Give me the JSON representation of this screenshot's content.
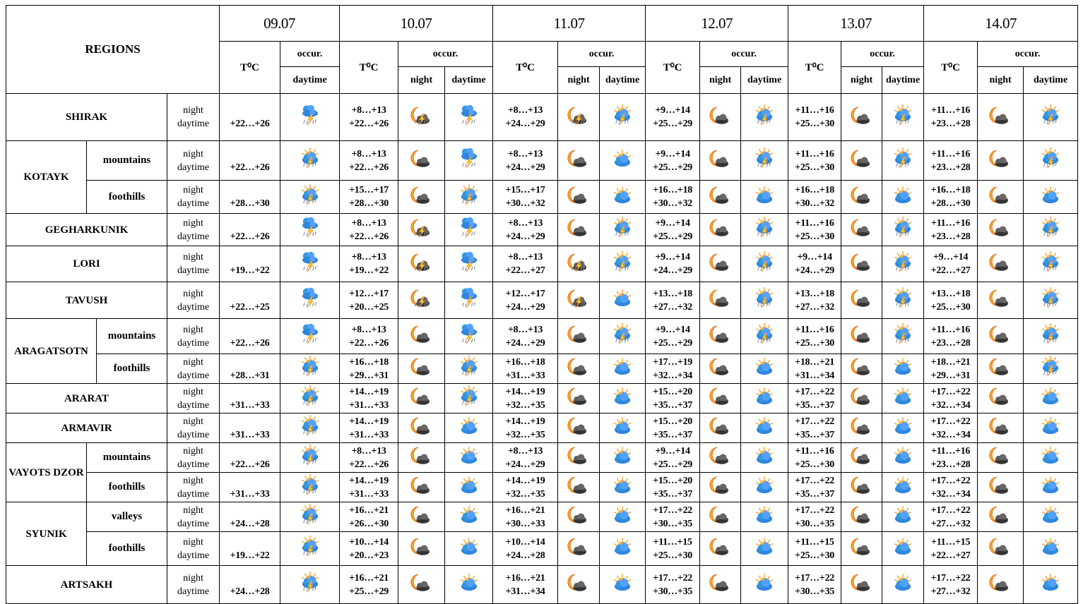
{
  "header": {
    "regions_label": "REGIONS",
    "temp_label": "T⁰C",
    "occur_label": "occur.",
    "night_label": "night",
    "daytime_label": "daytime"
  },
  "dates": [
    "09.07",
    "10.07",
    "11.07",
    "12.07",
    "13.07",
    "14.07"
  ],
  "row_labels": {
    "night": "night",
    "daytime": "daytime"
  },
  "icon_legend": {
    "storm": "storm-cloud-rain-lightning-icon",
    "sun-storm": "sun-cloud-rain-lightning-icon",
    "sun-cloud": "sun-behind-cloud-icon",
    "moon-cloud": "moon-cloud-icon",
    "moon-storm": "moon-cloud-lightning-icon"
  },
  "regions": [
    {
      "name": "SHIRAK",
      "subregions": [
        {
          "name": null,
          "first_day": {
            "day_temp": "+22…+26",
            "day_icon": "storm"
          },
          "days": [
            {
              "night_temp": "+8…+13",
              "day_temp": "+22…+26",
              "night_icon": "moon-storm",
              "day_icon": "storm"
            },
            {
              "night_temp": "+8…+13",
              "day_temp": "+24…+29",
              "night_icon": "moon-storm",
              "day_icon": "sun-storm"
            },
            {
              "night_temp": "+9…+14",
              "day_temp": "+25…+29",
              "night_icon": "moon-cloud",
              "day_icon": "sun-storm"
            },
            {
              "night_temp": "+11…+16",
              "day_temp": "+25…+30",
              "night_icon": "moon-cloud",
              "day_icon": "sun-storm"
            },
            {
              "night_temp": "+11…+16",
              "day_temp": "+23…+28",
              "night_icon": "moon-cloud",
              "day_icon": "sun-storm"
            }
          ]
        }
      ]
    },
    {
      "name": "KOTAYK",
      "subregions": [
        {
          "name": "mountains",
          "first_day": {
            "day_temp": "+22…+26",
            "day_icon": "sun-storm"
          },
          "days": [
            {
              "night_temp": "+8…+13",
              "day_temp": "+22…+26",
              "night_icon": "moon-cloud",
              "day_icon": "storm"
            },
            {
              "night_temp": "+8…+13",
              "day_temp": "+24…+29",
              "night_icon": "moon-cloud",
              "day_icon": "sun-cloud"
            },
            {
              "night_temp": "+9…+14",
              "day_temp": "+25…+29",
              "night_icon": "moon-cloud",
              "day_icon": "sun-storm"
            },
            {
              "night_temp": "+11…+16",
              "day_temp": "+25…+30",
              "night_icon": "moon-cloud",
              "day_icon": "sun-storm"
            },
            {
              "night_temp": "+11…+16",
              "day_temp": "+23…+28",
              "night_icon": "moon-cloud",
              "day_icon": "sun-storm"
            }
          ]
        },
        {
          "name": "foothills",
          "first_day": {
            "day_temp": "+28…+30",
            "day_icon": "sun-storm"
          },
          "days": [
            {
              "night_temp": "+15…+17",
              "day_temp": "+28…+30",
              "night_icon": "moon-cloud",
              "day_icon": "sun-storm"
            },
            {
              "night_temp": "+15…+17",
              "day_temp": "+30…+32",
              "night_icon": "moon-cloud",
              "day_icon": "sun-cloud"
            },
            {
              "night_temp": "+16…+18",
              "day_temp": "+30…+32",
              "night_icon": "moon-cloud",
              "day_icon": "sun-cloud"
            },
            {
              "night_temp": "+16…+18",
              "day_temp": "+30…+32",
              "night_icon": "moon-cloud",
              "day_icon": "sun-cloud"
            },
            {
              "night_temp": "+16…+18",
              "day_temp": "+28…+30",
              "night_icon": "moon-cloud",
              "day_icon": "sun-cloud"
            }
          ]
        }
      ]
    },
    {
      "name": "GEGHARKUNIK",
      "subregions": [
        {
          "name": null,
          "first_day": {
            "day_temp": "+22…+26",
            "day_icon": "storm"
          },
          "days": [
            {
              "night_temp": "+8…+13",
              "day_temp": "+22…+26",
              "night_icon": "moon-storm",
              "day_icon": "storm"
            },
            {
              "night_temp": "+8…+13",
              "day_temp": "+24…+29",
              "night_icon": "moon-cloud",
              "day_icon": "sun-storm"
            },
            {
              "night_temp": "+9…+14",
              "day_temp": "+25…+29",
              "night_icon": "moon-cloud",
              "day_icon": "sun-storm"
            },
            {
              "night_temp": "+11…+16",
              "day_temp": "+25…+30",
              "night_icon": "moon-cloud",
              "day_icon": "sun-storm"
            },
            {
              "night_temp": "+11…+16",
              "day_temp": "+23…+28",
              "night_icon": "moon-cloud",
              "day_icon": "sun-storm"
            }
          ]
        }
      ]
    },
    {
      "name": "LORI",
      "subregions": [
        {
          "name": null,
          "first_day": {
            "day_temp": "+19…+22",
            "day_icon": "storm"
          },
          "days": [
            {
              "night_temp": "+8…+13",
              "day_temp": "+19…+22",
              "night_icon": "moon-storm",
              "day_icon": "storm"
            },
            {
              "night_temp": "+8…+13",
              "day_temp": "+22…+27",
              "night_icon": "moon-storm",
              "day_icon": "sun-storm"
            },
            {
              "night_temp": "+9…+14",
              "day_temp": "+24…+29",
              "night_icon": "moon-cloud",
              "day_icon": "sun-storm"
            },
            {
              "night_temp": "+9…+14",
              "day_temp": "+24…+29",
              "night_icon": "moon-cloud",
              "day_icon": "sun-storm"
            },
            {
              "night_temp": "+9…+14",
              "day_temp": "+22…+27",
              "night_icon": "moon-cloud",
              "day_icon": "sun-storm"
            }
          ]
        }
      ]
    },
    {
      "name": "TAVUSH",
      "subregions": [
        {
          "name": null,
          "first_day": {
            "day_temp": "+22…+25",
            "day_icon": "storm"
          },
          "days": [
            {
              "night_temp": "+12…+17",
              "day_temp": "+20…+25",
              "night_icon": "moon-storm",
              "day_icon": "storm"
            },
            {
              "night_temp": "+12…+17",
              "day_temp": "+24…+29",
              "night_icon": "moon-storm",
              "day_icon": "sun-cloud"
            },
            {
              "night_temp": "+13…+18",
              "day_temp": "+27…+32",
              "night_icon": "moon-cloud",
              "day_icon": "sun-storm"
            },
            {
              "night_temp": "+13…+18",
              "day_temp": "+27…+32",
              "night_icon": "moon-cloud",
              "day_icon": "sun-storm"
            },
            {
              "night_temp": "+13…+18",
              "day_temp": "+25…+30",
              "night_icon": "moon-cloud",
              "day_icon": "sun-storm"
            }
          ]
        }
      ]
    },
    {
      "name": "ARAGATSOTN",
      "subregions": [
        {
          "name": "mountains",
          "first_day": {
            "day_temp": "+22…+26",
            "day_icon": "storm"
          },
          "days": [
            {
              "night_temp": "+8…+13",
              "day_temp": "+22…+26",
              "night_icon": "moon-cloud",
              "day_icon": "storm"
            },
            {
              "night_temp": "+8…+13",
              "day_temp": "+24…+29",
              "night_icon": "moon-cloud",
              "day_icon": "sun-storm"
            },
            {
              "night_temp": "+9…+14",
              "day_temp": "+25…+29",
              "night_icon": "moon-cloud",
              "day_icon": "sun-storm"
            },
            {
              "night_temp": "+11…+16",
              "day_temp": "+25…+30",
              "night_icon": "moon-cloud",
              "day_icon": "sun-storm"
            },
            {
              "night_temp": "+11…+16",
              "day_temp": "+23…+28",
              "night_icon": "moon-cloud",
              "day_icon": "sun-storm"
            }
          ]
        },
        {
          "name": "foothills",
          "first_day": {
            "day_temp": "+28…+31",
            "day_icon": "sun-storm"
          },
          "days": [
            {
              "night_temp": "+16…+18",
              "day_temp": "+29…+31",
              "night_icon": "moon-cloud",
              "day_icon": "sun-storm"
            },
            {
              "night_temp": "+16…+18",
              "day_temp": "+31…+33",
              "night_icon": "moon-cloud",
              "day_icon": "sun-cloud"
            },
            {
              "night_temp": "+17…+19",
              "day_temp": "+32…+34",
              "night_icon": "moon-cloud",
              "day_icon": "sun-cloud"
            },
            {
              "night_temp": "+18…+21",
              "day_temp": "+31…+34",
              "night_icon": "moon-cloud",
              "day_icon": "sun-cloud"
            },
            {
              "night_temp": "+18…+21",
              "day_temp": "+29…+31",
              "night_icon": "moon-cloud",
              "day_icon": "sun-storm"
            }
          ]
        }
      ]
    },
    {
      "name": "ARARAT",
      "subregions": [
        {
          "name": null,
          "first_day": {
            "day_temp": "+31…+33",
            "day_icon": "sun-storm"
          },
          "days": [
            {
              "night_temp": "+14…+19",
              "day_temp": "+31…+33",
              "night_icon": "moon-cloud",
              "day_icon": "sun-storm"
            },
            {
              "night_temp": "+14…+19",
              "day_temp": "+32…+35",
              "night_icon": "moon-cloud",
              "day_icon": "sun-cloud"
            },
            {
              "night_temp": "+15…+20",
              "day_temp": "+35…+37",
              "night_icon": "moon-cloud",
              "day_icon": "sun-cloud"
            },
            {
              "night_temp": "+17…+22",
              "day_temp": "+35…+37",
              "night_icon": "moon-cloud",
              "day_icon": "sun-cloud"
            },
            {
              "night_temp": "+17…+22",
              "day_temp": "+32…+34",
              "night_icon": "moon-cloud",
              "day_icon": "sun-cloud"
            }
          ]
        }
      ]
    },
    {
      "name": "ARMAVIR",
      "subregions": [
        {
          "name": null,
          "first_day": {
            "day_temp": "+31…+33",
            "day_icon": "sun-storm"
          },
          "days": [
            {
              "night_temp": "+14…+19",
              "day_temp": "+31…+33",
              "night_icon": "moon-cloud",
              "day_icon": "sun-cloud"
            },
            {
              "night_temp": "+14…+19",
              "day_temp": "+32…+35",
              "night_icon": "moon-cloud",
              "day_icon": "sun-cloud"
            },
            {
              "night_temp": "+15…+20",
              "day_temp": "+35…+37",
              "night_icon": "moon-cloud",
              "day_icon": "sun-cloud"
            },
            {
              "night_temp": "+17…+22",
              "day_temp": "+35…+37",
              "night_icon": "moon-cloud",
              "day_icon": "sun-cloud"
            },
            {
              "night_temp": "+17…+22",
              "day_temp": "+32…+34",
              "night_icon": "moon-cloud",
              "day_icon": "sun-cloud"
            }
          ]
        }
      ]
    },
    {
      "name": "VAYOTS DZOR",
      "subregions": [
        {
          "name": "mountains",
          "first_day": {
            "day_temp": "+22…+26",
            "day_icon": "sun-storm"
          },
          "days": [
            {
              "night_temp": "+8…+13",
              "day_temp": "+22…+26",
              "night_icon": "moon-cloud",
              "day_icon": "sun-cloud"
            },
            {
              "night_temp": "+8…+13",
              "day_temp": "+24…+29",
              "night_icon": "moon-cloud",
              "day_icon": "sun-cloud"
            },
            {
              "night_temp": "+9…+14",
              "day_temp": "+25…+29",
              "night_icon": "moon-cloud",
              "day_icon": "sun-cloud"
            },
            {
              "night_temp": "+11…+16",
              "day_temp": "+25…+30",
              "night_icon": "moon-cloud",
              "day_icon": "sun-cloud"
            },
            {
              "night_temp": "+11…+16",
              "day_temp": "+23…+28",
              "night_icon": "moon-cloud",
              "day_icon": "sun-cloud"
            }
          ]
        },
        {
          "name": "foothills",
          "first_day": {
            "day_temp": "+31…+33",
            "day_icon": "sun-storm"
          },
          "days": [
            {
              "night_temp": "+14…+19",
              "day_temp": "+31…+33",
              "night_icon": "moon-cloud",
              "day_icon": "sun-cloud"
            },
            {
              "night_temp": "+14…+19",
              "day_temp": "+32…+35",
              "night_icon": "moon-cloud",
              "day_icon": "sun-cloud"
            },
            {
              "night_temp": "+15…+20",
              "day_temp": "+35…+37",
              "night_icon": "moon-cloud",
              "day_icon": "sun-cloud"
            },
            {
              "night_temp": "+17…+22",
              "day_temp": "+35…+37",
              "night_icon": "moon-cloud",
              "day_icon": "sun-cloud"
            },
            {
              "night_temp": "+17…+22",
              "day_temp": "+32…+34",
              "night_icon": "moon-cloud",
              "day_icon": "sun-cloud"
            }
          ]
        }
      ]
    },
    {
      "name": "SYUNIK",
      "subregions": [
        {
          "name": "valleys",
          "first_day": {
            "day_temp": "+24…+28",
            "day_icon": "sun-storm"
          },
          "days": [
            {
              "night_temp": "+16…+21",
              "day_temp": "+26…+30",
              "night_icon": "moon-cloud",
              "day_icon": "sun-cloud"
            },
            {
              "night_temp": "+16…+21",
              "day_temp": "+30…+33",
              "night_icon": "moon-cloud",
              "day_icon": "sun-cloud"
            },
            {
              "night_temp": "+17…+22",
              "day_temp": "+30…+35",
              "night_icon": "moon-cloud",
              "day_icon": "sun-cloud"
            },
            {
              "night_temp": "+17…+22",
              "day_temp": "+30…+35",
              "night_icon": "moon-cloud",
              "day_icon": "sun-cloud"
            },
            {
              "night_temp": "+17…+22",
              "day_temp": "+27…+32",
              "night_icon": "moon-cloud",
              "day_icon": "sun-cloud"
            }
          ]
        },
        {
          "name": "foothills",
          "first_day": {
            "day_temp": "+19…+22",
            "day_icon": "sun-storm"
          },
          "days": [
            {
              "night_temp": "+10…+14",
              "day_temp": "+20…+23",
              "night_icon": "moon-cloud",
              "day_icon": "sun-cloud"
            },
            {
              "night_temp": "+10…+14",
              "day_temp": "+24…+28",
              "night_icon": "moon-cloud",
              "day_icon": "sun-cloud"
            },
            {
              "night_temp": "+11…+15",
              "day_temp": "+25…+30",
              "night_icon": "moon-cloud",
              "day_icon": "sun-cloud"
            },
            {
              "night_temp": "+11…+15",
              "day_temp": "+25…+30",
              "night_icon": "moon-cloud",
              "day_icon": "sun-cloud"
            },
            {
              "night_temp": "+11…+15",
              "day_temp": "+22…+27",
              "night_icon": "moon-cloud",
              "day_icon": "sun-cloud"
            }
          ]
        }
      ]
    },
    {
      "name": "ARTSAKH",
      "subregions": [
        {
          "name": null,
          "first_day": {
            "day_temp": "+24…+28",
            "day_icon": "sun-storm"
          },
          "days": [
            {
              "night_temp": "+16…+21",
              "day_temp": "+25…+29",
              "night_icon": "moon-cloud",
              "day_icon": "sun-cloud"
            },
            {
              "night_temp": "+16…+21",
              "day_temp": "+31…+34",
              "night_icon": "moon-cloud",
              "day_icon": "sun-cloud"
            },
            {
              "night_temp": "+17…+22",
              "day_temp": "+30…+35",
              "night_icon": "moon-cloud",
              "day_icon": "sun-cloud"
            },
            {
              "night_temp": "+17…+22",
              "day_temp": "+30…+35",
              "night_icon": "moon-cloud",
              "day_icon": "sun-cloud"
            },
            {
              "night_temp": "+17…+22",
              "day_temp": "+27…+32",
              "night_icon": "moon-cloud",
              "day_icon": "sun-cloud"
            }
          ]
        }
      ]
    }
  ]
}
